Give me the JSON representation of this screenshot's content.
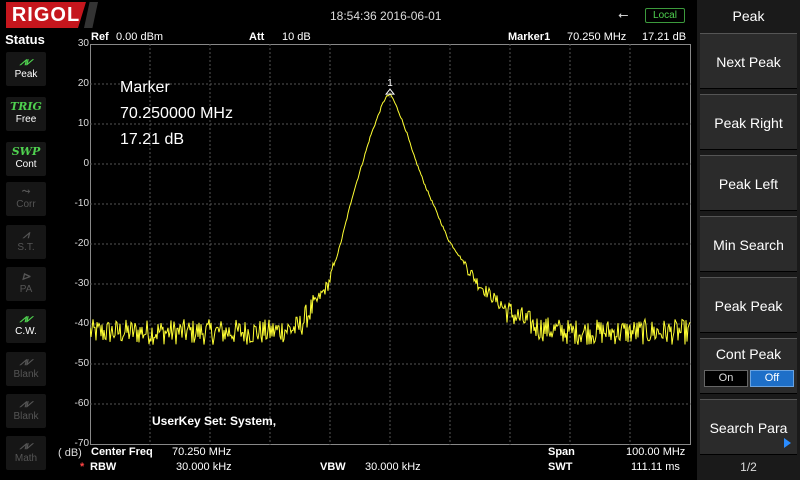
{
  "header": {
    "brand": "RIGOL",
    "datetime": "18:54:36 2016-06-01",
    "usb_icon": "usb-icon",
    "local_label": "Local"
  },
  "status": {
    "title": "Status",
    "items": [
      {
        "icon": "peak-icon",
        "label": "Peak",
        "active": true
      },
      {
        "icon": "TRIG",
        "label": "Free",
        "active": true
      },
      {
        "icon": "SWP",
        "label": "Cont",
        "active": true
      },
      {
        "icon": "corr-icon",
        "label": "Corr",
        "active": false
      },
      {
        "icon": "st-icon",
        "label": "S.T.",
        "active": false
      },
      {
        "icon": "pa-icon",
        "label": "PA",
        "active": false
      },
      {
        "icon": "cw-icon",
        "label": "C.W.",
        "active": true
      },
      {
        "icon": "blank-icon",
        "label": "Blank",
        "active": false
      },
      {
        "icon": "blank-icon",
        "label": "Blank",
        "active": false
      },
      {
        "icon": "math-icon",
        "label": "Math",
        "active": false
      }
    ]
  },
  "display": {
    "ref_label": "Ref",
    "ref_value": "0.00 dBm",
    "att_label": "Att",
    "att_value": "10 dB",
    "marker_label": "Marker1",
    "marker_freq": "70.250 MHz",
    "marker_level": "17.21 dB",
    "marker_box_title": "Marker",
    "marker_box_freq": "70.250000 MHz",
    "marker_box_level": "17.21 dB",
    "marker_number": "1",
    "unit": "( dB)",
    "user_key": "UserKey Set:    System,",
    "center_freq_label": "Center Freq",
    "center_freq_value": "70.250 MHz",
    "span_label": "Span",
    "span_value": "100.00 MHz",
    "rbw_star": "*",
    "rbw_label": "RBW",
    "rbw_value": "30.000 kHz",
    "vbw_label": "VBW",
    "vbw_value": "30.000 kHz",
    "swt_label": "SWT",
    "swt_value": "111.11 ms",
    "trace_color": "#ffff33",
    "y_ticks": [
      "30",
      "20",
      "10",
      "0",
      "-10",
      "-20",
      "-30",
      "-40",
      "-50",
      "-60",
      "-70"
    ]
  },
  "chart_data": {
    "type": "line",
    "x_unit": "MHz",
    "y_unit": "dB",
    "xlim": [
      20.25,
      120.25
    ],
    "ylim": [
      -70,
      30
    ],
    "grid": true,
    "series": [
      {
        "x": [
          20.25,
          25,
          30,
          35,
          40,
          45,
          50,
          55,
          60,
          62,
          64,
          66,
          67,
          68,
          69,
          69.5,
          70,
          70.25,
          70.5,
          71,
          72,
          73,
          74,
          76,
          78,
          80,
          85,
          90,
          95,
          100,
          105,
          110,
          115,
          120.25
        ],
        "y": [
          -42,
          -42,
          -42,
          -42,
          -42,
          -42,
          -42,
          -41,
          -30,
          -20,
          -8,
          2,
          7,
          11,
          15,
          16.5,
          17.2,
          17.21,
          17.0,
          15.5,
          12,
          8,
          3,
          -5,
          -12,
          -19,
          -30,
          -37,
          -41,
          -42,
          -42,
          -42,
          -42,
          -42
        ]
      }
    ],
    "markers": [
      {
        "label": "1",
        "x": 70.25,
        "y": 17.21
      }
    ]
  },
  "menu": {
    "title": "Peak",
    "buttons": [
      "Next Peak",
      "Peak Right",
      "Peak Left",
      "Min Search",
      "Peak Peak"
    ],
    "cont_peak_label": "Cont Peak",
    "cont_peak_on": "On",
    "cont_peak_off": "Off",
    "search_para": "Search Para",
    "page": "1/2"
  }
}
